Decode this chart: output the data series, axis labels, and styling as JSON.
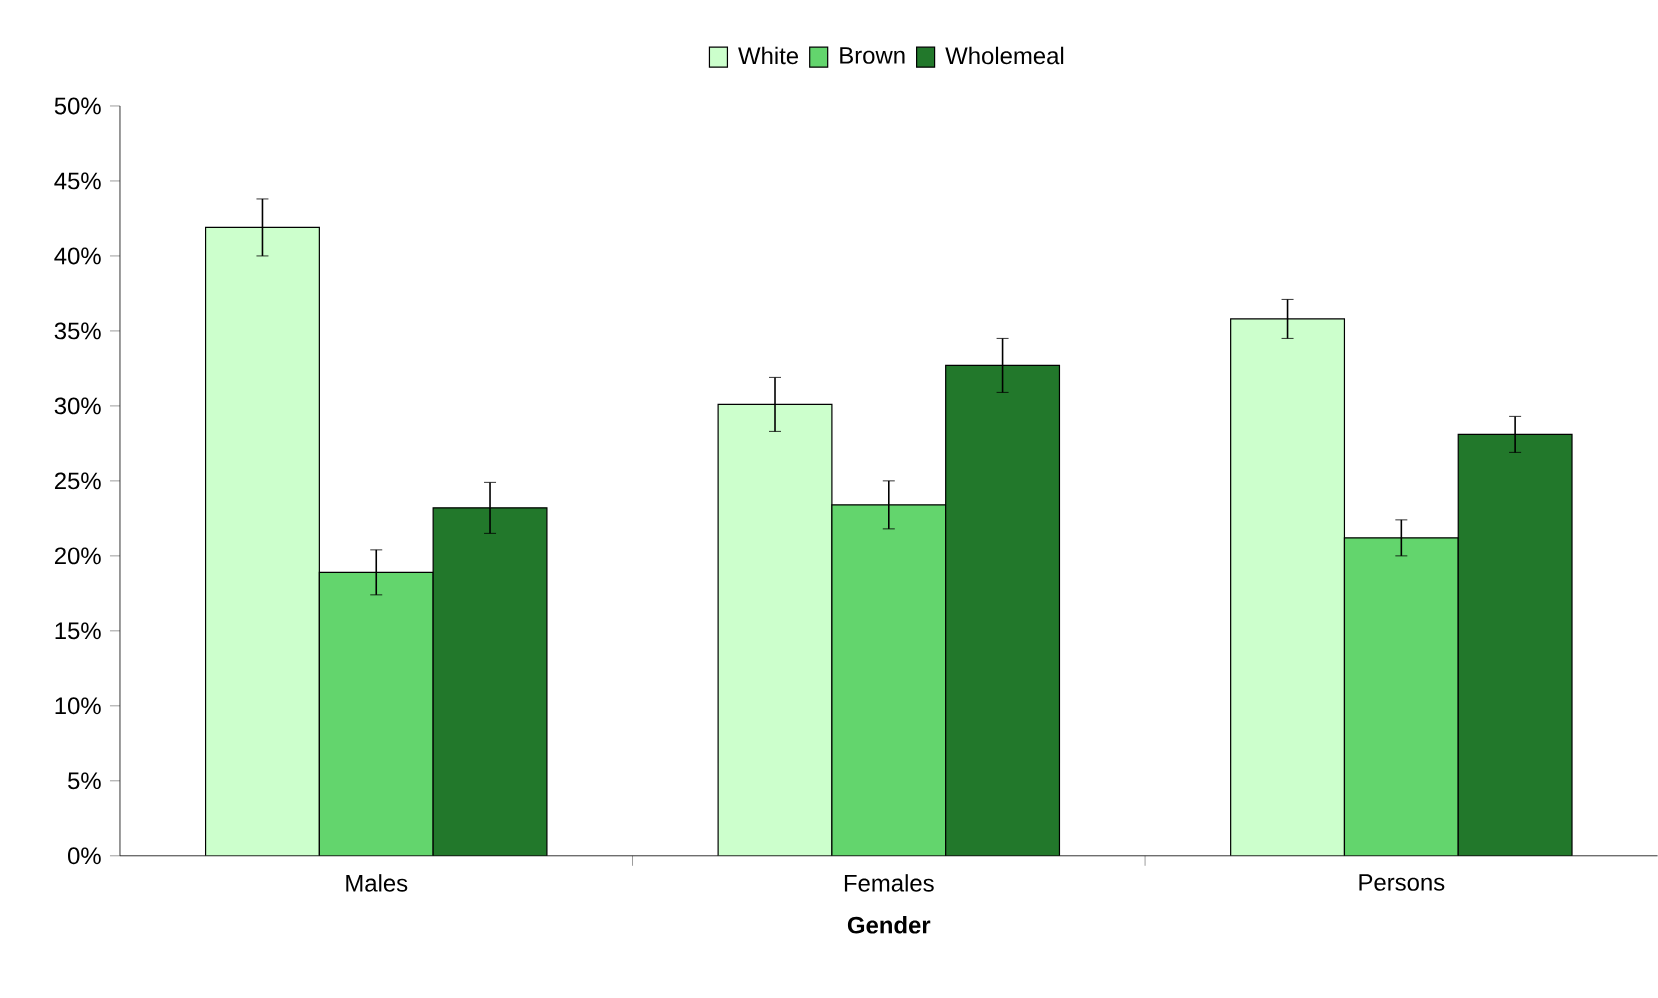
{
  "chart_data": {
    "type": "bar",
    "xlabel": "Gender",
    "categories": [
      "Males",
      "Females",
      "Persons"
    ],
    "series": [
      {
        "name": "White",
        "color": "#ccffcc",
        "values": [
          41.9,
          30.1,
          35.8
        ],
        "errors": [
          1.9,
          1.8,
          1.3
        ]
      },
      {
        "name": "Brown",
        "color": "#63d56d",
        "values": [
          18.9,
          23.4,
          21.2
        ],
        "errors": [
          1.5,
          1.6,
          1.2
        ]
      },
      {
        "name": "Wholemeal",
        "color": "#22782b",
        "values": [
          23.2,
          32.7,
          28.1
        ],
        "errors": [
          1.7,
          1.8,
          1.2
        ]
      }
    ],
    "ylim": [
      0,
      50
    ],
    "yticks": [
      {
        "value": 0,
        "label": "0%"
      },
      {
        "value": 5,
        "label": "5%"
      },
      {
        "value": 10,
        "label": "10%"
      },
      {
        "value": 15,
        "label": "15%"
      },
      {
        "value": 20,
        "label": "20%"
      },
      {
        "value": 25,
        "label": "25%"
      },
      {
        "value": 30,
        "label": "30%"
      },
      {
        "value": 35,
        "label": "35%"
      },
      {
        "value": 40,
        "label": "40%"
      },
      {
        "value": 45,
        "label": "45%"
      },
      {
        "value": 50,
        "label": "50%"
      }
    ],
    "grid": false,
    "legend": "top"
  }
}
